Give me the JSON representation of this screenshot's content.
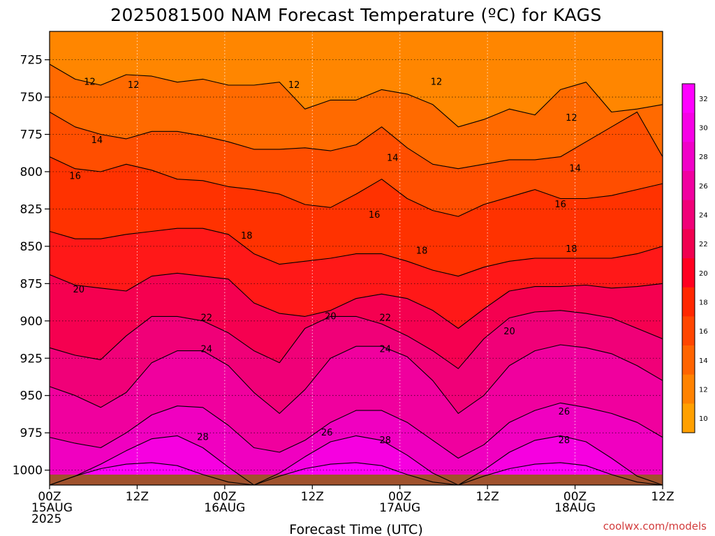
{
  "chart_data": {
    "type": "heatmap",
    "title": "2025081500 NAM Forecast Temperature (ºC) for KAGS",
    "xlabel": "Forecast Time (UTC)",
    "ylabel": "",
    "credit": "coolwx.com/models",
    "y_unit": "hPa",
    "y_ticks": [
      725,
      750,
      775,
      800,
      825,
      850,
      875,
      900,
      925,
      950,
      975,
      1000
    ],
    "ylim": [
      1010,
      706
    ],
    "x_ticks": [
      {
        "hours": 0,
        "lines": [
          "00Z",
          "15AUG",
          "2025"
        ]
      },
      {
        "hours": 12,
        "lines": [
          "12Z"
        ]
      },
      {
        "hours": 24,
        "lines": [
          "00Z",
          "16AUG"
        ]
      },
      {
        "hours": 36,
        "lines": [
          "12Z"
        ]
      },
      {
        "hours": 48,
        "lines": [
          "00Z",
          "17AUG"
        ]
      },
      {
        "hours": 60,
        "lines": [
          "12Z"
        ]
      },
      {
        "hours": 72,
        "lines": [
          "00Z",
          "18AUG"
        ]
      },
      {
        "hours": 84,
        "lines": [
          "12Z"
        ]
      }
    ],
    "xlim_hours": [
      0,
      84
    ],
    "grid": true,
    "colorbar": {
      "labels": [
        "32",
        "30",
        "28",
        "26",
        "24",
        "22",
        "20",
        "18",
        "16",
        "14",
        "12",
        "10"
      ],
      "colors": [
        "#ff00ff",
        "#f600e6",
        "#f000c8",
        "#f000a0",
        "#f00078",
        "#f00050",
        "#ff0020",
        "#ff2800",
        "#ff4600",
        "#ff6400",
        "#ff8200",
        "#ffa000"
      ]
    },
    "band_colors": [
      "#ff00ff",
      "#f600e0",
      "#f000c0",
      "#f0009e",
      "#f00078",
      "#f50050",
      "#ff1818",
      "#ff3200",
      "#ff4e00",
      "#ff6a00",
      "#ff8600",
      "#ffa000"
    ],
    "contours": [
      {
        "value": 30,
        "p": [
          1010,
          1004,
          999,
          996,
          995,
          997,
          1003,
          1008,
          1010,
          1004,
          999,
          996,
          995,
          997,
          1003,
          1008,
          1010,
          1004,
          999,
          996,
          995,
          997,
          1003,
          1008,
          1010
        ]
      },
      {
        "value": 28,
        "p": [
          1010,
          1004,
          996,
          987,
          979,
          977,
          985,
          998,
          1010,
          1002,
          991,
          981,
          977,
          980,
          990,
          1002,
          1010,
          1000,
          988,
          980,
          977,
          981,
          992,
          1004,
          1010
        ]
      },
      {
        "value": 26,
        "p": [
          978,
          982,
          985,
          975,
          963,
          957,
          958,
          970,
          985,
          988,
          980,
          968,
          960,
          960,
          968,
          980,
          992,
          983,
          968,
          960,
          955,
          958,
          962,
          968,
          978
        ]
      },
      {
        "value": 24,
        "p": [
          944,
          950,
          958,
          948,
          928,
          920,
          920,
          930,
          948,
          962,
          946,
          925,
          917,
          917,
          924,
          940,
          962,
          950,
          930,
          920,
          916,
          918,
          922,
          930,
          940
        ]
      },
      {
        "value": 22,
        "p": [
          918,
          923,
          926,
          910,
          897,
          897,
          900,
          908,
          920,
          928,
          905,
          897,
          897,
          902,
          910,
          920,
          932,
          912,
          898,
          894,
          893,
          895,
          898,
          905,
          912
        ]
      },
      {
        "value": 20,
        "p": [
          869,
          876,
          878,
          880,
          870,
          868,
          870,
          872,
          888,
          895,
          897,
          893,
          885,
          882,
          885,
          893,
          905,
          892,
          880,
          877,
          877,
          876,
          878,
          877,
          875
        ]
      },
      {
        "value": 18,
        "p": [
          840,
          845,
          845,
          842,
          840,
          838,
          838,
          842,
          855,
          862,
          860,
          858,
          855,
          855,
          860,
          866,
          870,
          864,
          860,
          858,
          858,
          858,
          858,
          855,
          850
        ]
      },
      {
        "value": 16,
        "p": [
          790,
          798,
          800,
          795,
          799,
          805,
          806,
          810,
          812,
          815,
          822,
          824,
          815,
          805,
          818,
          826,
          830,
          822,
          817,
          812,
          818,
          818,
          816,
          812,
          808
        ]
      },
      {
        "value": 14,
        "p": [
          760,
          770,
          775,
          778,
          773,
          773,
          776,
          780,
          785,
          785,
          784,
          786,
          782,
          770,
          784,
          795,
          798,
          795,
          792,
          792,
          790,
          780,
          770,
          760,
          790
        ]
      },
      {
        "value": 12,
        "p": [
          728,
          738,
          742,
          735,
          736,
          740,
          738,
          742,
          742,
          740,
          758,
          752,
          752,
          745,
          748,
          755,
          770,
          765,
          758,
          762,
          745,
          740,
          760,
          758,
          755
        ]
      }
    ],
    "contour_labels": [
      {
        "text": "12",
        "hours": 5.5,
        "p": 740
      },
      {
        "text": "12",
        "hours": 11.5,
        "p": 742
      },
      {
        "text": "12",
        "hours": 33.5,
        "p": 742
      },
      {
        "text": "12",
        "hours": 53,
        "p": 740
      },
      {
        "text": "12",
        "hours": 71.5,
        "p": 764
      },
      {
        "text": "14",
        "hours": 6.5,
        "p": 779
      },
      {
        "text": "14",
        "hours": 47,
        "p": 791
      },
      {
        "text": "14",
        "hours": 72,
        "p": 798
      },
      {
        "text": "16",
        "hours": 3.5,
        "p": 803
      },
      {
        "text": "16",
        "hours": 44.5,
        "p": 829
      },
      {
        "text": "16",
        "hours": 70,
        "p": 822
      },
      {
        "text": "18",
        "hours": 27,
        "p": 843
      },
      {
        "text": "18",
        "hours": 51,
        "p": 853
      },
      {
        "text": "18",
        "hours": 71.5,
        "p": 852
      },
      {
        "text": "20",
        "hours": 4,
        "p": 879
      },
      {
        "text": "20",
        "hours": 38.5,
        "p": 897
      },
      {
        "text": "20",
        "hours": 63,
        "p": 907
      },
      {
        "text": "22",
        "hours": 21.5,
        "p": 898
      },
      {
        "text": "22",
        "hours": 46,
        "p": 898
      },
      {
        "text": "24",
        "hours": 21.5,
        "p": 919
      },
      {
        "text": "24",
        "hours": 46,
        "p": 919
      },
      {
        "text": "26",
        "hours": 38,
        "p": 975
      },
      {
        "text": "26",
        "hours": 70.5,
        "p": 961
      },
      {
        "text": "28",
        "hours": 21,
        "p": 978
      },
      {
        "text": "28",
        "hours": 46,
        "p": 980
      },
      {
        "text": "28",
        "hours": 70.5,
        "p": 980
      }
    ],
    "ground": {
      "p_top": 1003,
      "color": "#a0522d"
    }
  }
}
